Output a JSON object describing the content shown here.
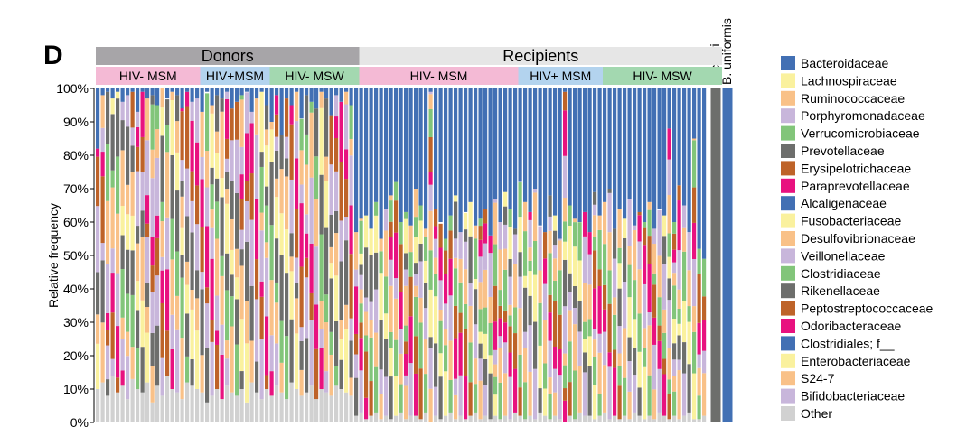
{
  "panel_label": "D",
  "chart_data": {
    "type": "stacked-bar",
    "ylabel": "Relative frequency",
    "ylim": [
      0,
      100
    ],
    "yticks": [
      "0%",
      "10%",
      "20%",
      "30%",
      "40%",
      "50%",
      "60%",
      "70%",
      "80%",
      "90%",
      "100%"
    ],
    "groups": [
      {
        "label": "Donors",
        "color": "#a7a5a8",
        "subgroups": [
          {
            "label": "HIV- MSM",
            "color": "#f4bad5",
            "n": 21
          },
          {
            "label": "HIV+MSM",
            "color": "#b3d3ee",
            "n": 14
          },
          {
            "label": "HIV- MSW",
            "color": "#a3d8b0",
            "n": 18
          }
        ]
      },
      {
        "label": "Recipients",
        "color": "#e6e6e6",
        "subgroups": [
          {
            "label": "HIV- MSM",
            "color": "#f4bad5",
            "n": 32
          },
          {
            "label": "HIV+ MSM",
            "color": "#b3d3ee",
            "n": 17
          },
          {
            "label": "HIV- MSW",
            "color": "#a3d8b0",
            "n": 24
          }
        ]
      }
    ],
    "controls": [
      {
        "label": "P. copri",
        "dominant_family": "Prevotellaceae"
      },
      {
        "label": "B. uniformis",
        "dominant_family": "Bacteroidaceae"
      }
    ],
    "series": [
      {
        "name": "Bacteroidaceae",
        "color": "#4270b4"
      },
      {
        "name": "Lachnospiraceae",
        "color": "#faf19e"
      },
      {
        "name": "Ruminococcaceae",
        "color": "#f9c188"
      },
      {
        "name": "Porphyromonadaceae",
        "color": "#c8b6db"
      },
      {
        "name": "Verrucomicrobiaceae",
        "color": "#82c57a"
      },
      {
        "name": "Prevotellaceae",
        "color": "#6d6e6c"
      },
      {
        "name": "Erysipelotrichaceae",
        "color": "#be6329"
      },
      {
        "name": "Paraprevotellaceae",
        "color": "#e8127f"
      },
      {
        "name": "Alcaligenaceae",
        "color": "#4270b4"
      },
      {
        "name": "Fusobacteriaceae",
        "color": "#faf19e"
      },
      {
        "name": "Desulfovibrionaceae",
        "color": "#f9c188"
      },
      {
        "name": "Veillonellaceae",
        "color": "#c8b6db"
      },
      {
        "name": "Clostridiaceae",
        "color": "#82c57a"
      },
      {
        "name": "Rikenellaceae",
        "color": "#6d6e6c"
      },
      {
        "name": "Peptostreptococcaceae",
        "color": "#be6329"
      },
      {
        "name": "Odoribacteraceae",
        "color": "#e8127f"
      },
      {
        "name": "Clostridiales; f__",
        "color": "#4270b4"
      },
      {
        "name": "Enterobacteriaceae",
        "color": "#faf19e"
      },
      {
        "name": "S24-7",
        "color": "#f9c188"
      },
      {
        "name": "Bifidobacteriaceae",
        "color": "#c8b6db"
      },
      {
        "name": "Other",
        "color": "#d1d1d1"
      }
    ],
    "bacteroidaceae_top_percent": [
      82,
      98,
      99,
      97,
      99,
      96,
      98,
      99,
      93,
      99,
      97,
      98,
      95,
      100,
      97,
      99,
      98,
      94,
      99,
      96,
      97,
      93,
      99,
      95,
      98,
      97,
      99,
      94,
      96,
      98,
      99,
      93,
      97,
      99,
      95,
      90,
      98,
      86,
      97,
      95,
      99,
      91,
      98,
      96,
      94,
      99,
      97,
      92,
      98,
      96,
      99,
      95,
      57,
      61,
      62,
      58,
      66,
      55,
      64,
      68,
      72,
      60,
      63,
      59,
      70,
      65,
      58,
      99,
      64,
      60,
      55,
      62,
      68,
      57,
      63,
      66,
      59,
      61,
      64,
      56,
      67,
      60,
      69,
      64,
      58,
      72,
      66,
      63,
      70,
      59,
      57,
      68,
      62,
      55,
      99,
      65,
      61,
      60,
      63,
      57,
      69,
      62,
      66,
      70,
      58,
      64,
      61,
      67,
      59,
      63,
      60,
      66,
      58,
      64,
      62,
      88,
      60,
      71,
      65,
      57,
      85,
      52,
      49
    ],
    "other_base_percent": [
      10,
      12,
      8,
      14,
      9,
      11,
      7,
      13,
      10,
      9,
      12,
      6,
      11,
      8,
      14,
      10,
      9,
      7,
      12,
      11,
      10,
      9,
      6,
      8,
      10,
      7,
      11,
      9,
      8,
      10,
      6,
      12,
      9,
      7,
      10,
      8,
      11,
      9,
      7,
      12,
      10,
      8,
      9,
      11,
      7,
      10,
      9,
      8,
      11,
      10,
      9,
      8,
      2,
      3,
      1,
      2,
      3,
      1,
      2,
      1,
      2,
      3,
      1,
      2,
      2,
      1,
      3,
      0,
      2,
      1,
      2,
      3,
      1,
      2,
      1,
      2,
      3,
      1,
      2,
      1,
      2,
      1,
      2,
      1,
      3,
      2,
      1,
      2,
      1,
      3,
      2,
      1,
      2,
      1,
      0,
      2,
      1,
      3,
      2,
      2,
      1,
      2,
      3,
      1,
      2,
      1,
      2,
      1,
      3,
      2,
      1,
      2,
      1,
      3,
      2,
      1,
      2,
      1,
      2,
      3,
      1,
      1,
      2
    ]
  }
}
